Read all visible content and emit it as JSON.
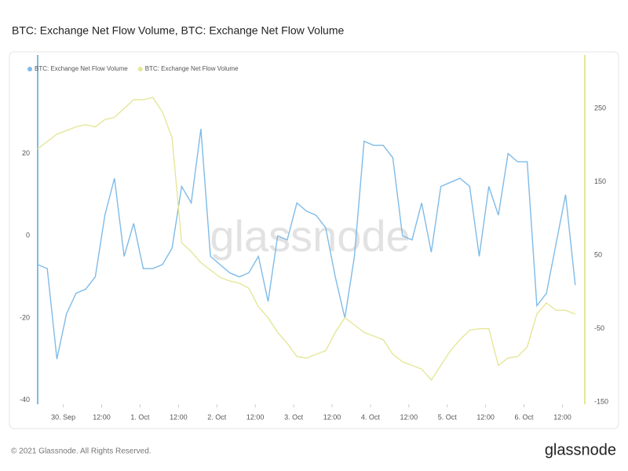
{
  "chart_data": {
    "type": "line",
    "title": "BTC: Exchange Net Flow Volume, BTC: Exchange Net Flow Volume",
    "watermark": "glassnode",
    "footer": "© 2021 Glassnode. All Rights Reserved.",
    "logo": "glassnode",
    "legend": "top-left",
    "grid": false,
    "x": [
      -8,
      -5,
      -2,
      1,
      4,
      7,
      10,
      13,
      16,
      19,
      22,
      25,
      28,
      31,
      34,
      37,
      40,
      43,
      46,
      49,
      52,
      55,
      58,
      61,
      64,
      67,
      70,
      73,
      76,
      79,
      82,
      85,
      88,
      91,
      94,
      97,
      100,
      103,
      106,
      109,
      112,
      115,
      118,
      121,
      124,
      127,
      130,
      133,
      136,
      139,
      142,
      145,
      148,
      151,
      154,
      157,
      160
    ],
    "xlim": [
      -8,
      163
    ],
    "xticks": [
      {
        "value": 0,
        "label": "30. Sep"
      },
      {
        "value": 12,
        "label": "12:00"
      },
      {
        "value": 24,
        "label": "1. Oct"
      },
      {
        "value": 36,
        "label": "12:00"
      },
      {
        "value": 48,
        "label": "2. Oct"
      },
      {
        "value": 60,
        "label": "12:00"
      },
      {
        "value": 72,
        "label": "3. Oct"
      },
      {
        "value": 84,
        "label": "12:00"
      },
      {
        "value": 96,
        "label": "4. Oct"
      },
      {
        "value": 108,
        "label": "12:00"
      },
      {
        "value": 120,
        "label": "5. Oct"
      },
      {
        "value": 132,
        "label": "12:00"
      },
      {
        "value": 144,
        "label": "6. Oct"
      },
      {
        "value": 156,
        "label": "12:00"
      }
    ],
    "ylim": [
      -41,
      44
    ],
    "yticks": [
      -40,
      -20,
      0,
      20
    ],
    "y2lim": [
      -153,
      323
    ],
    "y2ticks": [
      -150,
      -50,
      50,
      150,
      250
    ],
    "series": [
      {
        "name": "BTC: Exchange Net Flow Volume",
        "color": "#7fbbe8",
        "axis": "y",
        "values": [
          -7,
          -8,
          -30,
          -19,
          -14,
          -13,
          -10,
          5,
          14,
          -5,
          3,
          -8,
          -8,
          -7,
          -3,
          12,
          8,
          26,
          -5,
          -7,
          -9,
          -10,
          -9,
          -5,
          -16,
          0,
          -1,
          8,
          6,
          5,
          2,
          -10,
          -20,
          -5,
          23,
          22,
          22,
          19,
          0,
          -1,
          8,
          -4,
          12,
          13,
          14,
          12,
          -5,
          12,
          5,
          20,
          18,
          18,
          -17,
          -14,
          -2,
          10,
          -12
        ]
      },
      {
        "name": "BTC: Exchange Net Flow Volume",
        "color": "#e6e69a",
        "axis": "y2",
        "values": [
          195,
          205,
          215,
          220,
          225,
          228,
          225,
          235,
          238,
          250,
          262,
          262,
          265,
          245,
          210,
          67,
          55,
          40,
          30,
          20,
          15,
          12,
          5,
          -20,
          -35,
          -55,
          -70,
          -88,
          -90,
          -85,
          -80,
          -55,
          -35,
          -45,
          -55,
          -60,
          -65,
          -85,
          -95,
          -100,
          -105,
          -120,
          -100,
          -80,
          -65,
          -52,
          -50,
          -50,
          -100,
          -90,
          -88,
          -75,
          -30,
          -15,
          -25,
          -25,
          -30
        ]
      }
    ]
  }
}
